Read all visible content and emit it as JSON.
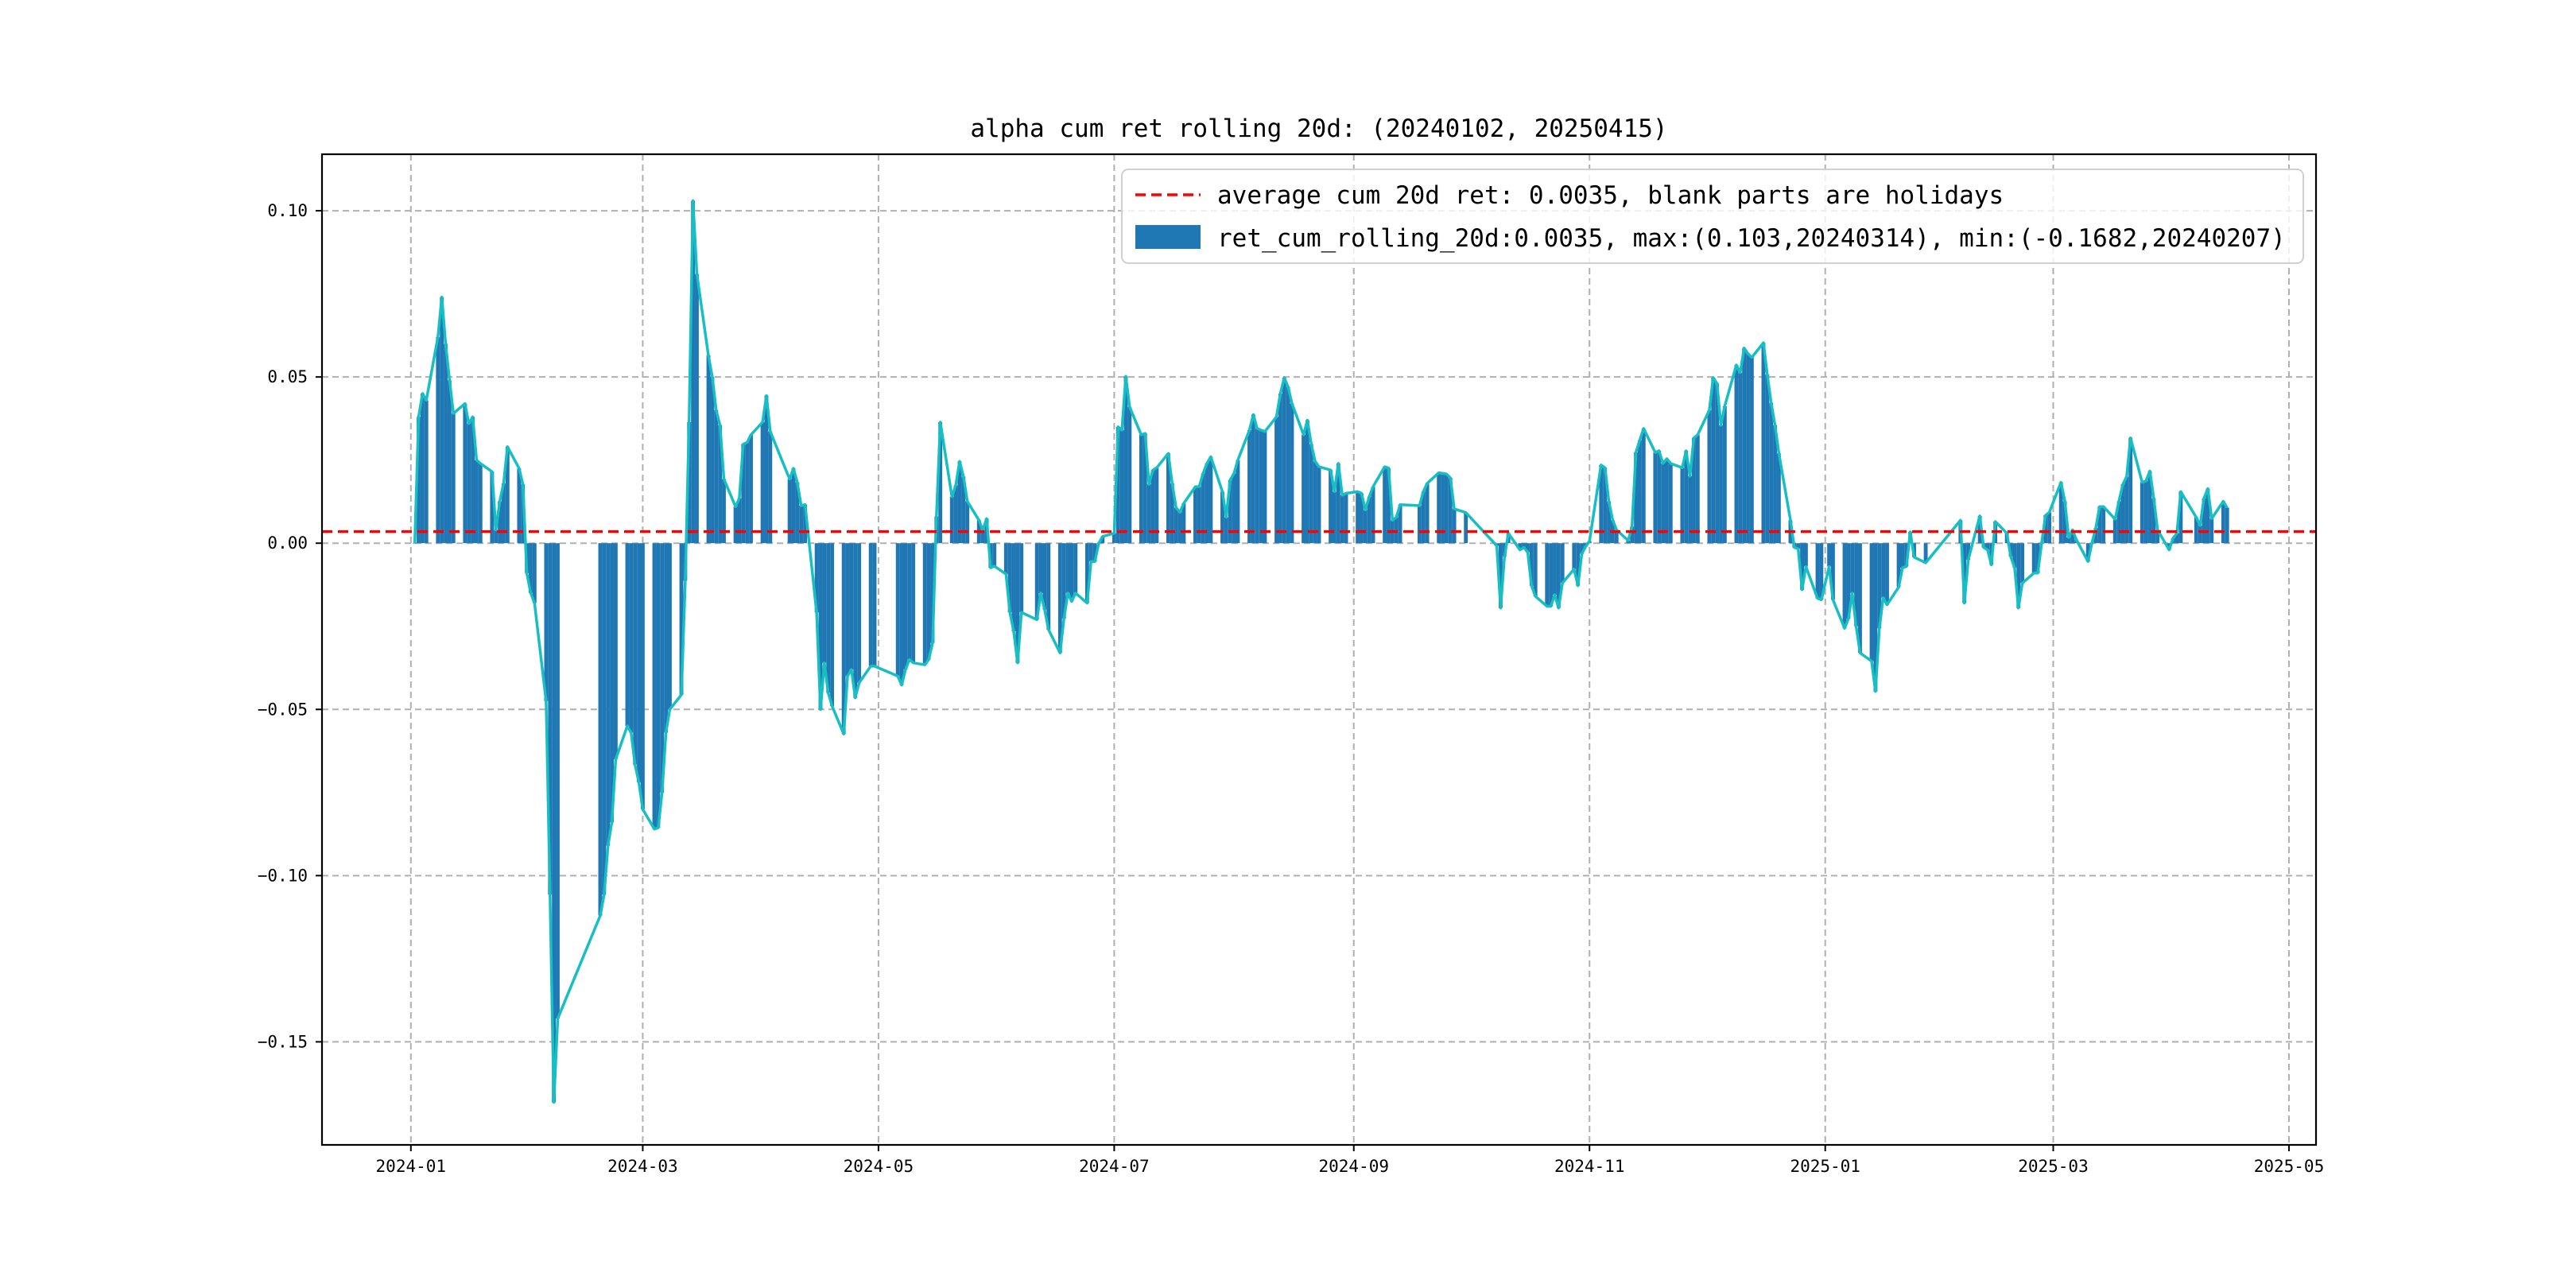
{
  "chart_data": {
    "type": "bar",
    "title": "alpha cum ret rolling 20d: (20240102, 20250415)",
    "xlabel": "",
    "ylabel": "",
    "xlim": [
      "2023-12-09",
      "2025-05-08"
    ],
    "ylim": [
      -0.181,
      0.117
    ],
    "grid": true,
    "legend_placement": "top-right",
    "x_ticks": [
      "2024-01",
      "2024-03",
      "2024-05",
      "2024-07",
      "2024-09",
      "2024-11",
      "2025-01",
      "2025-03",
      "2025-05"
    ],
    "y_ticks": [
      0.1,
      0.05,
      0.0,
      -0.05,
      -0.1,
      -0.15
    ],
    "y_tick_labels": [
      "0.10",
      "0.05",
      "0.00",
      "−0.05",
      "−0.10",
      "−0.15"
    ],
    "average_line": {
      "value": 0.0035,
      "color": "#ff0000",
      "label": "average cum 20d ret: 0.0035, blank parts are holidays"
    },
    "series": [
      {
        "name": "ret_cum_rolling_20d:0.0035, max:(0.103,20240314), min:(-0.1682,20240207)",
        "kind": "bar+line",
        "bar_color": "#1f77b4",
        "line_color": "#17bfc4",
        "dates": [
          "2024-01-02",
          "2024-01-03",
          "2024-01-04",
          "2024-01-05",
          "2024-01-08",
          "2024-01-09",
          "2024-01-10",
          "2024-01-11",
          "2024-01-12",
          "2024-01-15",
          "2024-01-16",
          "2024-01-17",
          "2024-01-18",
          "2024-01-19",
          "2024-01-22",
          "2024-01-23",
          "2024-01-24",
          "2024-01-25",
          "2024-01-26",
          "2024-01-29",
          "2024-01-30",
          "2024-01-31",
          "2024-02-01",
          "2024-02-02",
          "2024-02-05",
          "2024-02-06",
          "2024-02-07",
          "2024-02-08",
          "2024-02-19",
          "2024-02-20",
          "2024-02-21",
          "2024-02-22",
          "2024-02-23",
          "2024-02-26",
          "2024-02-27",
          "2024-02-28",
          "2024-02-29",
          "2024-03-01",
          "2024-03-04",
          "2024-03-05",
          "2024-03-06",
          "2024-03-07",
          "2024-03-08",
          "2024-03-11",
          "2024-03-12",
          "2024-03-13",
          "2024-03-14",
          "2024-03-15",
          "2024-03-18",
          "2024-03-19",
          "2024-03-20",
          "2024-03-21",
          "2024-03-22",
          "2024-03-25",
          "2024-03-26",
          "2024-03-27",
          "2024-03-28",
          "2024-03-29",
          "2024-04-01",
          "2024-04-02",
          "2024-04-03",
          "2024-04-08",
          "2024-04-09",
          "2024-04-10",
          "2024-04-11",
          "2024-04-12",
          "2024-04-15",
          "2024-04-16",
          "2024-04-17",
          "2024-04-18",
          "2024-04-19",
          "2024-04-22",
          "2024-04-23",
          "2024-04-24",
          "2024-04-25",
          "2024-04-26",
          "2024-04-29",
          "2024-04-30",
          "2024-05-06",
          "2024-05-07",
          "2024-05-08",
          "2024-05-09",
          "2024-05-10",
          "2024-05-13",
          "2024-05-14",
          "2024-05-15",
          "2024-05-16",
          "2024-05-17",
          "2024-05-20",
          "2024-05-21",
          "2024-05-22",
          "2024-05-23",
          "2024-05-24",
          "2024-05-27",
          "2024-05-28",
          "2024-05-29",
          "2024-05-30",
          "2024-05-31",
          "2024-06-03",
          "2024-06-04",
          "2024-06-05",
          "2024-06-06",
          "2024-06-07",
          "2024-06-11",
          "2024-06-12",
          "2024-06-13",
          "2024-06-14",
          "2024-06-17",
          "2024-06-18",
          "2024-06-19",
          "2024-06-20",
          "2024-06-21",
          "2024-06-24",
          "2024-06-25",
          "2024-06-26",
          "2024-06-27",
          "2024-06-28",
          "2024-07-01",
          "2024-07-02",
          "2024-07-03",
          "2024-07-04",
          "2024-07-05",
          "2024-07-08",
          "2024-07-09",
          "2024-07-10",
          "2024-07-11",
          "2024-07-12",
          "2024-07-15",
          "2024-07-16",
          "2024-07-17",
          "2024-07-18",
          "2024-07-19",
          "2024-07-22",
          "2024-07-23",
          "2024-07-24",
          "2024-07-25",
          "2024-07-26",
          "2024-07-29",
          "2024-07-30",
          "2024-07-31",
          "2024-08-01",
          "2024-08-02",
          "2024-08-05",
          "2024-08-06",
          "2024-08-07",
          "2024-08-08",
          "2024-08-09",
          "2024-08-12",
          "2024-08-13",
          "2024-08-14",
          "2024-08-15",
          "2024-08-16",
          "2024-08-19",
          "2024-08-20",
          "2024-08-21",
          "2024-08-22",
          "2024-08-23",
          "2024-08-26",
          "2024-08-27",
          "2024-08-28",
          "2024-08-29",
          "2024-08-30",
          "2024-09-02",
          "2024-09-03",
          "2024-09-04",
          "2024-09-05",
          "2024-09-06",
          "2024-09-09",
          "2024-09-10",
          "2024-09-11",
          "2024-09-12",
          "2024-09-13",
          "2024-09-18",
          "2024-09-19",
          "2024-09-20",
          "2024-09-23",
          "2024-09-24",
          "2024-09-25",
          "2024-09-26",
          "2024-09-27",
          "2024-09-30",
          "2024-10-08",
          "2024-10-09",
          "2024-10-10",
          "2024-10-11",
          "2024-10-14",
          "2024-10-15",
          "2024-10-16",
          "2024-10-17",
          "2024-10-18",
          "2024-10-21",
          "2024-10-22",
          "2024-10-23",
          "2024-10-24",
          "2024-10-25",
          "2024-10-28",
          "2024-10-29",
          "2024-10-30",
          "2024-10-31",
          "2024-11-01",
          "2024-11-04",
          "2024-11-05",
          "2024-11-06",
          "2024-11-07",
          "2024-11-08",
          "2024-11-11",
          "2024-11-12",
          "2024-11-13",
          "2024-11-14",
          "2024-11-15",
          "2024-11-18",
          "2024-11-19",
          "2024-11-20",
          "2024-11-21",
          "2024-11-22",
          "2024-11-25",
          "2024-11-26",
          "2024-11-27",
          "2024-11-28",
          "2024-11-29",
          "2024-12-02",
          "2024-12-03",
          "2024-12-04",
          "2024-12-05",
          "2024-12-06",
          "2024-12-09",
          "2024-12-10",
          "2024-12-11",
          "2024-12-12",
          "2024-12-13",
          "2024-12-16",
          "2024-12-17",
          "2024-12-18",
          "2024-12-19",
          "2024-12-20",
          "2024-12-23",
          "2024-12-24",
          "2024-12-25",
          "2024-12-26",
          "2024-12-27",
          "2024-12-30",
          "2024-12-31",
          "2025-01-02",
          "2025-01-03",
          "2025-01-06",
          "2025-01-07",
          "2025-01-08",
          "2025-01-09",
          "2025-01-10",
          "2025-01-13",
          "2025-01-14",
          "2025-01-15",
          "2025-01-16",
          "2025-01-17",
          "2025-01-20",
          "2025-01-21",
          "2025-01-22",
          "2025-01-23",
          "2025-01-24",
          "2025-01-27",
          "2025-02-05",
          "2025-02-06",
          "2025-02-07",
          "2025-02-10",
          "2025-02-11",
          "2025-02-12",
          "2025-02-13",
          "2025-02-14",
          "2025-02-17",
          "2025-02-18",
          "2025-02-19",
          "2025-02-20",
          "2025-02-21",
          "2025-02-24",
          "2025-02-25",
          "2025-02-26",
          "2025-02-27",
          "2025-02-28",
          "2025-03-03",
          "2025-03-04",
          "2025-03-05",
          "2025-03-06",
          "2025-03-07",
          "2025-03-10",
          "2025-03-11",
          "2025-03-12",
          "2025-03-13",
          "2025-03-14",
          "2025-03-17",
          "2025-03-18",
          "2025-03-19",
          "2025-03-20",
          "2025-03-21",
          "2025-03-24",
          "2025-03-25",
          "2025-03-26",
          "2025-03-27",
          "2025-03-28",
          "2025-03-31",
          "2025-04-01",
          "2025-04-02",
          "2025-04-03",
          "2025-04-07",
          "2025-04-08",
          "2025-04-09",
          "2025-04-10",
          "2025-04-11",
          "2025-04-14",
          "2025-04-15"
        ],
        "values": [
          0.0,
          0.038,
          0.045,
          0.043,
          0.062,
          0.074,
          0.06,
          0.049,
          0.039,
          0.042,
          0.036,
          0.038,
          0.025,
          0.024,
          0.0215,
          0.004,
          0.0126,
          0.018,
          0.029,
          0.0225,
          0.0177,
          -0.009,
          -0.015,
          -0.018,
          -0.0475,
          -0.1057,
          -0.1682,
          -0.143,
          -0.112,
          -0.1057,
          -0.091,
          -0.084,
          -0.065,
          -0.055,
          -0.057,
          -0.0666,
          -0.072,
          -0.08,
          -0.086,
          -0.0856,
          -0.075,
          -0.057,
          -0.05,
          -0.0456,
          -0.0113,
          0.0364,
          0.103,
          0.081,
          0.0565,
          0.05,
          0.04,
          0.0355,
          0.0193,
          0.011,
          0.0135,
          0.0298,
          0.0303,
          0.0326,
          0.0364,
          0.0444,
          0.0336,
          0.0193,
          0.0225,
          0.0183,
          0.0113,
          0.0116,
          -0.0208,
          -0.05,
          -0.036,
          -0.045,
          -0.049,
          -0.0574,
          -0.04,
          -0.038,
          -0.0465,
          -0.042,
          -0.037,
          -0.037,
          -0.04,
          -0.0427,
          -0.038,
          -0.035,
          -0.036,
          -0.0366,
          -0.035,
          -0.03,
          0.008,
          0.0364,
          0.014,
          0.0174,
          0.0246,
          0.02,
          0.0126,
          0.0069,
          0.004,
          0.0074,
          -0.0074,
          -0.0069,
          -0.0093,
          -0.0208,
          -0.0265,
          -0.036,
          -0.0208,
          -0.023,
          -0.015,
          -0.02,
          -0.026,
          -0.033,
          -0.0227,
          -0.015,
          -0.0175,
          -0.015,
          -0.018,
          -0.0055,
          -0.0055,
          0.0,
          0.002,
          0.003,
          0.035,
          0.034,
          0.0502,
          0.041,
          0.0326,
          0.033,
          0.0177,
          0.022,
          0.0227,
          0.027,
          0.018,
          0.0107,
          0.0093,
          0.012,
          0.017,
          0.017,
          0.021,
          0.024,
          0.026,
          0.0155,
          0.0078,
          0.019,
          0.021,
          0.025,
          0.034,
          0.0387,
          0.0345,
          0.034,
          0.0336,
          0.038,
          0.045,
          0.0498,
          0.047,
          0.042,
          0.0326,
          0.037,
          0.0298,
          0.0246,
          0.023,
          0.022,
          0.0155,
          0.024,
          0.0145,
          0.015,
          0.0155,
          0.015,
          0.01,
          0.014,
          0.017,
          0.023,
          0.0226,
          0.0069,
          0.0078,
          0.0116,
          0.0113,
          0.0155,
          0.018,
          0.0212,
          0.021,
          0.0208,
          0.0196,
          0.0103,
          0.0092,
          -0.0008,
          -0.0195,
          -0.004,
          0.003,
          -0.002,
          -0.0013,
          -0.0027,
          -0.0128,
          -0.016,
          -0.019,
          -0.019,
          -0.0155,
          -0.0195,
          -0.012,
          -0.0078,
          -0.0128,
          -0.0032,
          -0.001,
          0.0006,
          0.0235,
          0.0227,
          0.0126,
          0.0069,
          0.004,
          0.0008,
          0.005,
          0.0273,
          0.031,
          0.0345,
          0.0273,
          0.0278,
          0.024,
          0.0254,
          0.024,
          0.0227,
          0.0278,
          0.0202,
          0.0317,
          0.0326,
          0.04,
          0.0498,
          0.048,
          0.0355,
          0.0412,
          0.0536,
          0.0513,
          0.0587,
          0.057,
          0.0559,
          0.0603,
          0.0507,
          0.0422,
          0.0355,
          0.027,
          0.0069,
          -0.0013,
          -0.0017,
          -0.014,
          -0.007,
          -0.0166,
          -0.017,
          -0.007,
          -0.017,
          -0.0256,
          -0.0227,
          -0.015,
          -0.025,
          -0.033,
          -0.0355,
          -0.0446,
          -0.0256,
          -0.0164,
          -0.0185,
          -0.0132,
          -0.0074,
          -0.007,
          0.0034,
          -0.0042,
          -0.0059,
          0.0069,
          -0.018,
          -0.005,
          0.0082,
          -0.0013,
          -0.002,
          -0.0065,
          0.0065,
          0.003,
          -0.004,
          -0.0074,
          -0.0195,
          -0.012,
          -0.009,
          -0.009,
          0.0,
          0.0084,
          0.0093,
          0.0183,
          0.0126,
          0.0017,
          0.004,
          0.001,
          -0.0055,
          0.0,
          0.0046,
          0.011,
          0.011,
          0.0072,
          0.0126,
          0.0177,
          0.02,
          0.0317,
          0.0183,
          0.0187,
          0.0217,
          0.0135,
          0.004,
          -0.002,
          0.0015,
          0.003,
          0.0155,
          0.0078,
          0.0053,
          0.0135,
          0.0164,
          0.0074,
          0.0126,
          0.0107
        ]
      }
    ],
    "legend": [
      {
        "label": "average cum 20d ret: 0.0035, blank parts are holidays",
        "marker": "red-dashed-line"
      },
      {
        "label": "ret_cum_rolling_20d:0.0035, max:(0.103,20240314), min:(-0.1682,20240207)",
        "marker": "blue-patch"
      }
    ]
  }
}
